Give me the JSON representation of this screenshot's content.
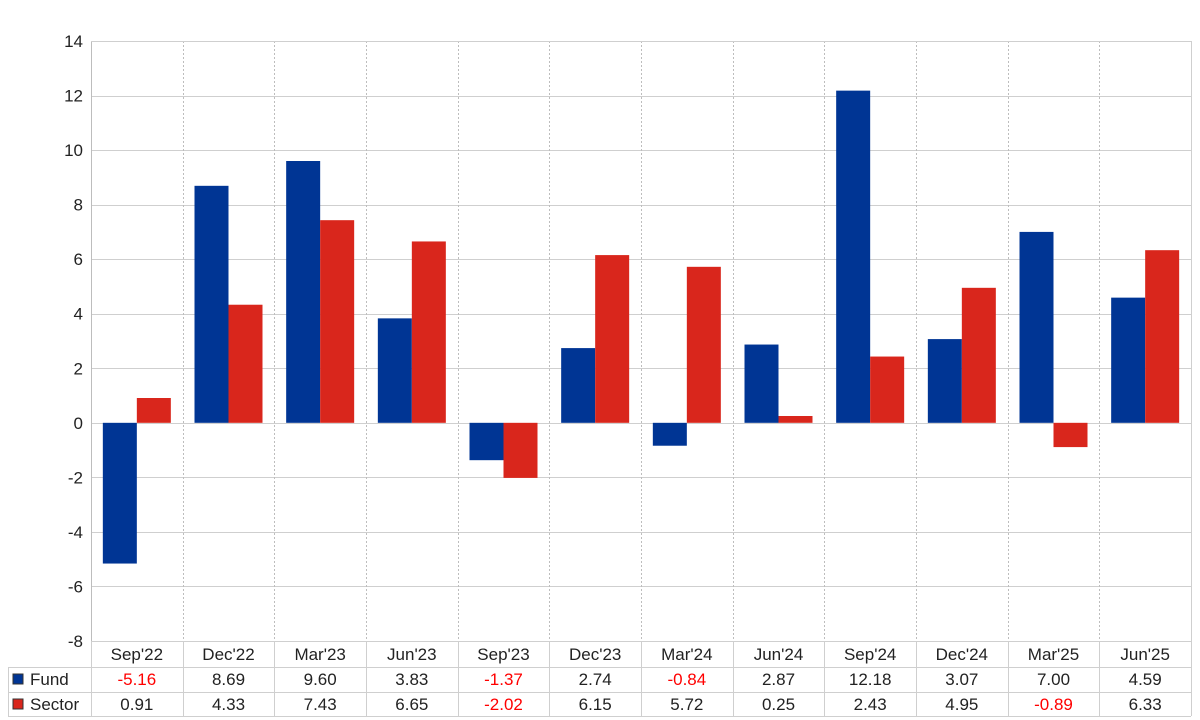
{
  "chart_data": {
    "type": "bar",
    "categories": [
      "Sep'22",
      "Dec'22",
      "Mar'23",
      "Jun'23",
      "Sep'23",
      "Dec'23",
      "Mar'24",
      "Jun'24",
      "Sep'24",
      "Dec'24",
      "Mar'25",
      "Jun'25"
    ],
    "series": [
      {
        "name": "Fund",
        "color": "#003594",
        "values": [
          -5.16,
          8.69,
          9.6,
          3.83,
          -1.37,
          2.74,
          -0.84,
          2.87,
          12.18,
          3.07,
          7.0,
          4.59
        ],
        "labels": [
          "-5.16",
          "8.69",
          "9.60",
          "3.83",
          "-1.37",
          "2.74",
          "-0.84",
          "2.87",
          "12.18",
          "3.07",
          "7.00",
          "4.59"
        ]
      },
      {
        "name": "Sector",
        "color": "#d9261c",
        "values": [
          0.91,
          4.33,
          7.43,
          6.65,
          -2.02,
          6.15,
          5.72,
          0.25,
          2.43,
          4.95,
          -0.89,
          6.33
        ],
        "labels": [
          "0.91",
          "4.33",
          "7.43",
          "6.65",
          "-2.02",
          "6.15",
          "5.72",
          "0.25",
          "2.43",
          "4.95",
          "-0.89",
          "6.33"
        ]
      }
    ],
    "y_ticks": [
      "14",
      "12",
      "10",
      "8",
      "6",
      "4",
      "2",
      "0",
      "-2",
      "-4",
      "-6",
      "-8"
    ],
    "ylim": [
      -8,
      14
    ],
    "ystep": 2,
    "grid": true,
    "legend": "data-table-left",
    "negative_label_color": "#ff0000",
    "title": "",
    "xlabel": "",
    "ylabel": ""
  }
}
